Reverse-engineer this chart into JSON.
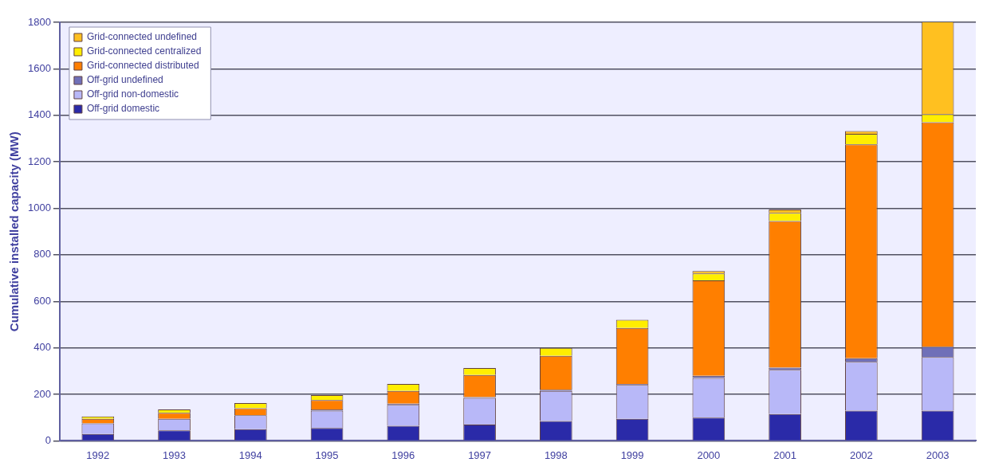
{
  "chart_data": {
    "type": "bar",
    "stacked": true,
    "ylabel": "Cumulative installed capacity (MW)",
    "categories": [
      "1992",
      "1993",
      "1994",
      "1995",
      "1996",
      "1997",
      "1998",
      "1999",
      "2000",
      "2001",
      "2002",
      "2003"
    ],
    "ylim": [
      0,
      1800
    ],
    "yticks": [
      0,
      200,
      400,
      600,
      800,
      1000,
      1200,
      1400,
      1600,
      1800
    ],
    "grid": "y",
    "legend": "top left",
    "series": [
      {
        "name": "Off-grid domestic",
        "color": "#2a2aa8",
        "values": [
          30,
          45,
          50,
          55,
          65,
          70,
          85,
          95,
          100,
          115,
          130,
          130
        ]
      },
      {
        "name": "Off-grid non-domestic",
        "color": "#b8b8f8",
        "values": [
          45,
          50,
          60,
          75,
          90,
          115,
          130,
          145,
          170,
          190,
          210,
          230
        ]
      },
      {
        "name": "Off-grid undefined",
        "color": "#7070b8",
        "values": [
          null,
          null,
          null,
          5,
          5,
          3,
          5,
          5,
          10,
          10,
          15,
          45
        ]
      },
      {
        "name": "Grid-connected distributed",
        "color": "#ff7f00",
        "values": [
          20,
          25,
          30,
          40,
          55,
          95,
          145,
          240,
          410,
          630,
          920,
          965
        ]
      },
      {
        "name": "Grid-connected centralized",
        "color": "#ffee00",
        "values": [
          10,
          15,
          22,
          22,
          30,
          30,
          35,
          35,
          30,
          35,
          45,
          35
        ]
      },
      {
        "name": "Grid-connected undefined",
        "color": "#ffc020",
        "values": [
          0,
          0,
          0,
          0,
          0,
          0,
          0,
          0,
          10,
          15,
          12,
          400
        ]
      }
    ]
  }
}
